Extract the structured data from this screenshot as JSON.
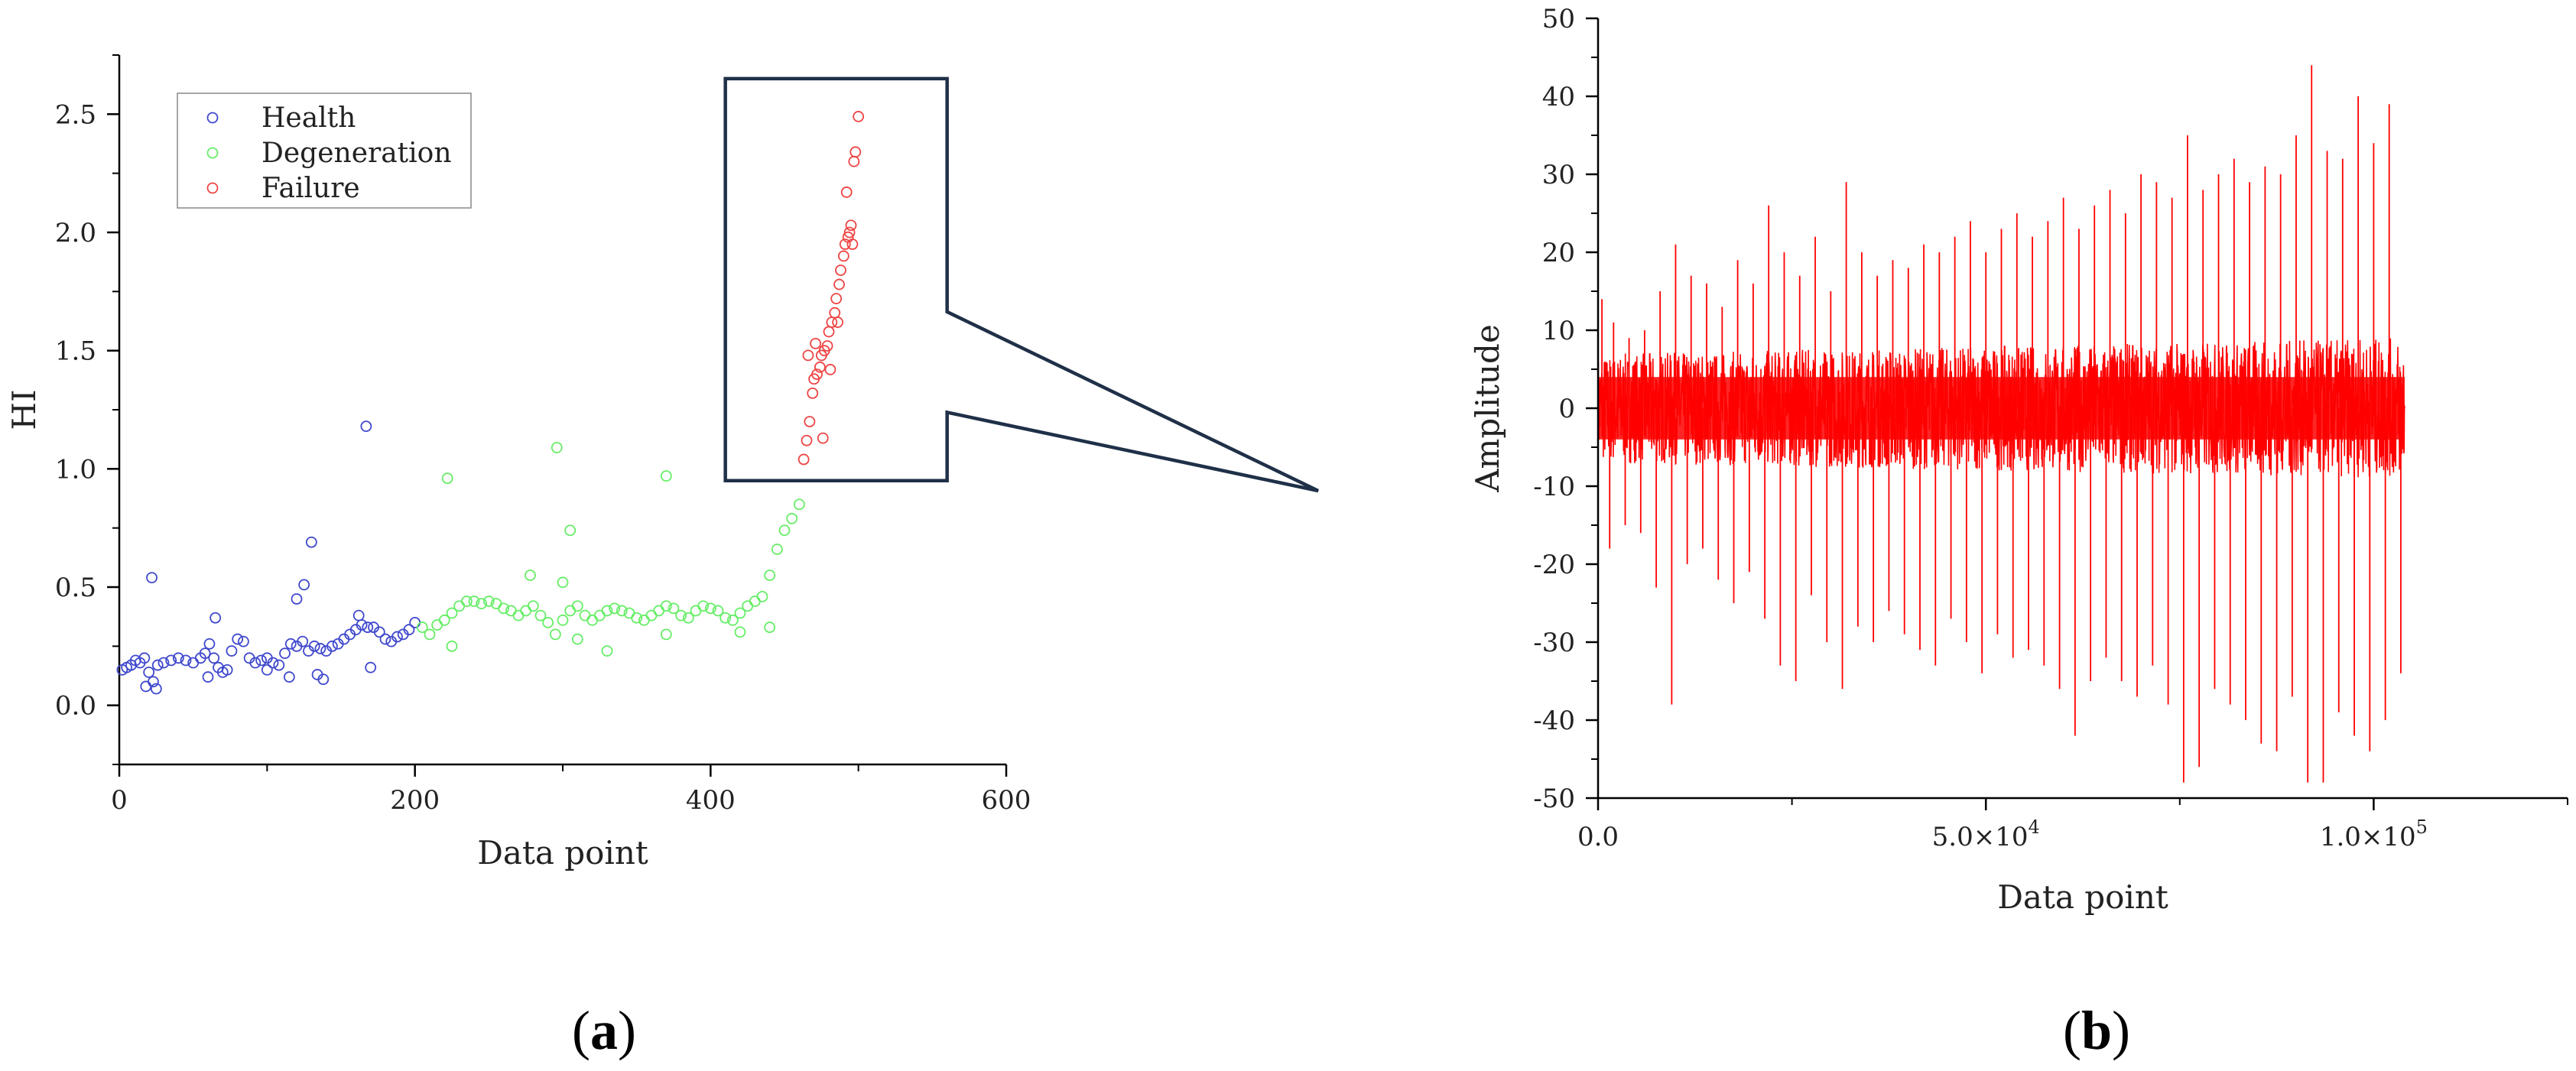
{
  "colors": {
    "health": "#3f48cc",
    "degeneration": "#66ee66",
    "failure": "#ee4444",
    "signal": "#ff0000",
    "inset_border": "#1f3048",
    "axis": "#000000"
  },
  "chart_data": [
    {
      "type": "scatter",
      "panel_label": "a",
      "xlabel": "Data point",
      "ylabel": "HI",
      "xlim": [
        0,
        600
      ],
      "ylim": [
        -0.25,
        2.75
      ],
      "xticks": [
        0,
        200,
        400,
        600
      ],
      "yticks": [
        0.0,
        0.5,
        1.0,
        1.5,
        2.0,
        2.5
      ],
      "xtick_labels": [
        "0",
        "200",
        "400",
        "600"
      ],
      "ytick_labels": [
        "0.0",
        "0.5",
        "1.0",
        "1.5",
        "2.0",
        "2.5"
      ],
      "legend": {
        "placement": "top-left",
        "entries": [
          "Health",
          "Degeneration",
          "Failure"
        ]
      },
      "series": [
        {
          "name": "Health",
          "color_key": "health",
          "x": [
            2,
            5,
            8,
            11,
            14,
            17,
            20,
            23,
            26,
            30,
            35,
            40,
            45,
            50,
            55,
            58,
            61,
            64,
            67,
            70,
            73,
            76,
            80,
            84,
            88,
            92,
            96,
            100,
            104,
            108,
            112,
            116,
            120,
            124,
            128,
            132,
            136,
            140,
            144,
            148,
            152,
            156,
            160,
            164,
            168,
            172,
            176,
            180,
            184,
            188,
            192,
            196,
            200,
            22,
            18,
            25,
            65,
            60,
            120,
            125,
            130,
            134,
            138,
            162,
            167,
            170,
            115,
            100
          ],
          "y": [
            0.15,
            0.16,
            0.17,
            0.19,
            0.18,
            0.2,
            0.14,
            0.1,
            0.17,
            0.18,
            0.19,
            0.2,
            0.19,
            0.18,
            0.2,
            0.22,
            0.26,
            0.2,
            0.16,
            0.14,
            0.15,
            0.23,
            0.28,
            0.27,
            0.2,
            0.18,
            0.19,
            0.2,
            0.18,
            0.17,
            0.22,
            0.26,
            0.25,
            0.27,
            0.23,
            0.25,
            0.24,
            0.23,
            0.25,
            0.26,
            0.28,
            0.3,
            0.32,
            0.34,
            0.33,
            0.33,
            0.31,
            0.28,
            0.27,
            0.29,
            0.3,
            0.32,
            0.35,
            0.54,
            0.08,
            0.07,
            0.37,
            0.12,
            0.45,
            0.51,
            0.69,
            0.13,
            0.11,
            0.38,
            1.18,
            0.16,
            0.12,
            0.15
          ]
        },
        {
          "name": "Degeneration",
          "color_key": "degeneration",
          "x": [
            205,
            210,
            215,
            220,
            225,
            230,
            235,
            240,
            245,
            250,
            255,
            260,
            265,
            270,
            275,
            280,
            285,
            290,
            295,
            300,
            305,
            310,
            315,
            320,
            325,
            330,
            335,
            340,
            345,
            350,
            355,
            360,
            365,
            370,
            375,
            380,
            385,
            390,
            395,
            400,
            405,
            410,
            415,
            420,
            425,
            430,
            435,
            440,
            445,
            450,
            455,
            460,
            222,
            296,
            305,
            370,
            370,
            278,
            330,
            310,
            225,
            420,
            440,
            300
          ],
          "y": [
            0.33,
            0.3,
            0.34,
            0.36,
            0.39,
            0.42,
            0.44,
            0.44,
            0.43,
            0.44,
            0.43,
            0.41,
            0.4,
            0.38,
            0.4,
            0.42,
            0.38,
            0.35,
            0.3,
            0.36,
            0.4,
            0.42,
            0.38,
            0.36,
            0.38,
            0.4,
            0.41,
            0.4,
            0.39,
            0.37,
            0.36,
            0.38,
            0.4,
            0.42,
            0.41,
            0.38,
            0.37,
            0.4,
            0.42,
            0.41,
            0.4,
            0.37,
            0.36,
            0.39,
            0.42,
            0.44,
            0.46,
            0.55,
            0.66,
            0.74,
            0.79,
            0.85,
            0.96,
            1.09,
            0.74,
            0.97,
            0.3,
            0.55,
            0.23,
            0.28,
            0.25,
            0.31,
            0.33,
            0.52
          ]
        },
        {
          "name": "Failure",
          "color_key": "failure",
          "x": [
            463,
            465,
            467,
            469,
            470,
            472,
            474,
            475,
            477,
            479,
            480,
            482,
            484,
            485,
            487,
            488,
            490,
            491,
            493,
            494,
            495,
            497,
            498,
            500,
            466,
            471,
            476,
            481,
            486,
            492,
            496
          ],
          "y": [
            1.04,
            1.12,
            1.2,
            1.32,
            1.38,
            1.4,
            1.43,
            1.48,
            1.5,
            1.52,
            1.58,
            1.62,
            1.66,
            1.72,
            1.78,
            1.84,
            1.9,
            1.95,
            1.98,
            2.0,
            2.03,
            2.3,
            2.34,
            2.49,
            1.48,
            1.53,
            1.13,
            1.42,
            1.62,
            2.17,
            1.95
          ]
        }
      ],
      "inset_box": {
        "x_range": [
          410,
          560
        ],
        "y_range": [
          0.95,
          2.65
        ]
      }
    },
    {
      "type": "line",
      "panel_label": "b",
      "xlabel": "Data point",
      "ylabel": "Amplitude",
      "xlim": [
        0,
        125000
      ],
      "ylim": [
        -50,
        50
      ],
      "xticks": [
        0,
        50000,
        100000
      ],
      "xtick_labels": [
        "0.0",
        "5.0×10",
        "1.0×10"
      ],
      "xtick_exponents": [
        "",
        "4",
        "5"
      ],
      "yticks": [
        -50,
        -40,
        -30,
        -20,
        -10,
        0,
        10,
        20,
        30,
        40,
        50
      ],
      "ytick_labels": [
        "-50",
        "-40",
        "-30",
        "-20",
        "-10",
        "0",
        "10",
        "20",
        "30",
        "40",
        "50"
      ],
      "series": [
        {
          "color_key": "signal",
          "x_start": 0,
          "x_end": 104000,
          "band_start": [
            -7,
            7
          ],
          "band_end": [
            -9,
            9
          ],
          "positive_spikes": [
            [
              500,
              14
            ],
            [
              2000,
              11
            ],
            [
              4000,
              9
            ],
            [
              6000,
              10
            ],
            [
              8000,
              15
            ],
            [
              10000,
              21
            ],
            [
              12000,
              17
            ],
            [
              14000,
              16
            ],
            [
              16000,
              13
            ],
            [
              18000,
              19
            ],
            [
              20000,
              16
            ],
            [
              22000,
              26
            ],
            [
              24000,
              20
            ],
            [
              26000,
              17
            ],
            [
              28000,
              22
            ],
            [
              30000,
              15
            ],
            [
              32000,
              29
            ],
            [
              34000,
              20
            ],
            [
              36000,
              17
            ],
            [
              38000,
              19
            ],
            [
              40000,
              18
            ],
            [
              42000,
              21
            ],
            [
              44000,
              20
            ],
            [
              46000,
              22
            ],
            [
              48000,
              24
            ],
            [
              50000,
              20
            ],
            [
              52000,
              23
            ],
            [
              54000,
              25
            ],
            [
              56000,
              22
            ],
            [
              58000,
              24
            ],
            [
              60000,
              27
            ],
            [
              62000,
              23
            ],
            [
              64000,
              26
            ],
            [
              66000,
              28
            ],
            [
              68000,
              25
            ],
            [
              70000,
              30
            ],
            [
              72000,
              29
            ],
            [
              74000,
              27
            ],
            [
              76000,
              35
            ],
            [
              78000,
              28
            ],
            [
              80000,
              30
            ],
            [
              82000,
              32
            ],
            [
              84000,
              29
            ],
            [
              86000,
              31
            ],
            [
              88000,
              30
            ],
            [
              90000,
              35
            ],
            [
              92000,
              44
            ],
            [
              94000,
              33
            ],
            [
              96000,
              32
            ],
            [
              98000,
              40
            ],
            [
              100000,
              34
            ],
            [
              102000,
              39
            ]
          ],
          "negative_spikes": [
            [
              1500,
              -18
            ],
            [
              3500,
              -15
            ],
            [
              5500,
              -16
            ],
            [
              7500,
              -23
            ],
            [
              9500,
              -38
            ],
            [
              11500,
              -20
            ],
            [
              13500,
              -18
            ],
            [
              15500,
              -22
            ],
            [
              17500,
              -25
            ],
            [
              19500,
              -21
            ],
            [
              21500,
              -27
            ],
            [
              23500,
              -33
            ],
            [
              25500,
              -35
            ],
            [
              27500,
              -24
            ],
            [
              29500,
              -30
            ],
            [
              31500,
              -36
            ],
            [
              33500,
              -28
            ],
            [
              35500,
              -30
            ],
            [
              37500,
              -26
            ],
            [
              39500,
              -29
            ],
            [
              41500,
              -31
            ],
            [
              43500,
              -33
            ],
            [
              45500,
              -27
            ],
            [
              47500,
              -30
            ],
            [
              49500,
              -34
            ],
            [
              51500,
              -29
            ],
            [
              53500,
              -32
            ],
            [
              55500,
              -31
            ],
            [
              57500,
              -33
            ],
            [
              59500,
              -36
            ],
            [
              61500,
              -42
            ],
            [
              63500,
              -35
            ],
            [
              65500,
              -32
            ],
            [
              67500,
              -35
            ],
            [
              69500,
              -37
            ],
            [
              71500,
              -33
            ],
            [
              73500,
              -38
            ],
            [
              75500,
              -48
            ],
            [
              77500,
              -46
            ],
            [
              79500,
              -36
            ],
            [
              81500,
              -38
            ],
            [
              83500,
              -40
            ],
            [
              85500,
              -43
            ],
            [
              87500,
              -44
            ],
            [
              89500,
              -37
            ],
            [
              91500,
              -48
            ],
            [
              93500,
              -48
            ],
            [
              95500,
              -39
            ],
            [
              97500,
              -42
            ],
            [
              99500,
              -44
            ],
            [
              101500,
              -40
            ],
            [
              103500,
              -34
            ]
          ]
        }
      ]
    }
  ]
}
